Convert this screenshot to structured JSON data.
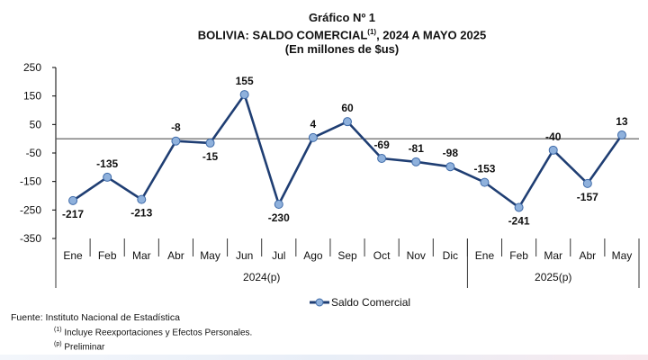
{
  "header": {
    "figure_label": "Gráfico Nº 1",
    "title": "BOLIVIA: SALDO COMERCIAL",
    "title_note": "(1)",
    "title_suffix": ", 2024 A MAYO 2025",
    "units": "(En millones de $us)"
  },
  "chart_data": {
    "type": "line",
    "x": [
      "Ene",
      "Feb",
      "Mar",
      "Abr",
      "May",
      "Jun",
      "Jul",
      "Ago",
      "Sep",
      "Oct",
      "Nov",
      "Dic",
      "Ene",
      "Feb",
      "Mar",
      "Abr",
      "May"
    ],
    "groups": [
      {
        "label": "2024(p)",
        "count": 12
      },
      {
        "label": "2025(p)",
        "count": 5
      }
    ],
    "series": [
      {
        "name": "Saldo Comercial",
        "values": [
          -217,
          -135,
          -213,
          -8,
          -15,
          155,
          -230,
          4,
          60,
          -69,
          -81,
          -98,
          -153,
          -241,
          -40,
          -157,
          13
        ]
      }
    ],
    "ylim": [
      -350,
      250
    ],
    "yticks": [
      250,
      150,
      50,
      -50,
      -150,
      -250,
      -350
    ],
    "grid": false,
    "zero_line": true,
    "legend_position": "bottom",
    "colors": {
      "line": "#1f3e73",
      "marker": "#8fb1dc",
      "marker_stroke": "#3e6aa8",
      "axis": "#000000"
    }
  },
  "legend": {
    "label": "Saldo Comercial"
  },
  "source": {
    "line1": "Fuente: Instituto Nacional de Estadística",
    "note1_mark": "(1)",
    "note1_text": " Incluye Reexportaciones y Efectos Personales.",
    "note2_mark": "(p)",
    "note2_text": " Preliminar"
  }
}
